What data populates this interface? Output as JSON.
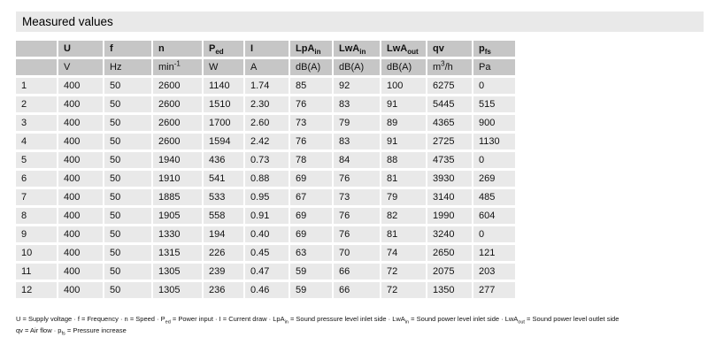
{
  "title": "Measured values",
  "colors": {
    "title_bar_bg": "#e9e9e9",
    "header_cell_bg": "#c6c6c6",
    "data_cell_bg": "#e9e9e9",
    "text": "#111111",
    "page_bg": "#ffffff"
  },
  "table": {
    "header": [
      {
        "base": "",
        "sub": ""
      },
      {
        "base": "U",
        "sub": ""
      },
      {
        "base": "f",
        "sub": ""
      },
      {
        "base": "n",
        "sub": ""
      },
      {
        "base": "P",
        "sub": "ed"
      },
      {
        "base": "I",
        "sub": ""
      },
      {
        "base": "LpA",
        "sub": "in"
      },
      {
        "base": "LwA",
        "sub": "in"
      },
      {
        "base": "LwA",
        "sub": "out"
      },
      {
        "base": "qv",
        "sub": ""
      },
      {
        "base": "p",
        "sub": "fs"
      }
    ],
    "units": [
      {
        "base": "",
        "sup": "",
        "after": ""
      },
      {
        "base": "V",
        "sup": "",
        "after": ""
      },
      {
        "base": "Hz",
        "sup": "",
        "after": ""
      },
      {
        "base": "min",
        "sup": "-1",
        "after": ""
      },
      {
        "base": "W",
        "sup": "",
        "after": ""
      },
      {
        "base": "A",
        "sup": "",
        "after": ""
      },
      {
        "base": "dB(A)",
        "sup": "",
        "after": ""
      },
      {
        "base": "dB(A)",
        "sup": "",
        "after": ""
      },
      {
        "base": "dB(A)",
        "sup": "",
        "after": ""
      },
      {
        "base": "m",
        "sup": "3",
        "after": "/h"
      },
      {
        "base": "Pa",
        "sup": "",
        "after": ""
      }
    ],
    "rows": [
      [
        "1",
        "400",
        "50",
        "2600",
        "1140",
        "1.74",
        "85",
        "92",
        "100",
        "6275",
        "0"
      ],
      [
        "2",
        "400",
        "50",
        "2600",
        "1510",
        "2.30",
        "76",
        "83",
        "91",
        "5445",
        "515"
      ],
      [
        "3",
        "400",
        "50",
        "2600",
        "1700",
        "2.60",
        "73",
        "79",
        "89",
        "4365",
        "900"
      ],
      [
        "4",
        "400",
        "50",
        "2600",
        "1594",
        "2.42",
        "76",
        "83",
        "91",
        "2725",
        "1130"
      ],
      [
        "5",
        "400",
        "50",
        "1940",
        "436",
        "0.73",
        "78",
        "84",
        "88",
        "4735",
        "0"
      ],
      [
        "6",
        "400",
        "50",
        "1910",
        "541",
        "0.88",
        "69",
        "76",
        "81",
        "3930",
        "269"
      ],
      [
        "7",
        "400",
        "50",
        "1885",
        "533",
        "0.95",
        "67",
        "73",
        "79",
        "3140",
        "485"
      ],
      [
        "8",
        "400",
        "50",
        "1905",
        "558",
        "0.91",
        "69",
        "76",
        "82",
        "1990",
        "604"
      ],
      [
        "9",
        "400",
        "50",
        "1330",
        "194",
        "0.40",
        "69",
        "76",
        "81",
        "3240",
        "0"
      ],
      [
        "10",
        "400",
        "50",
        "1315",
        "226",
        "0.45",
        "63",
        "70",
        "74",
        "2650",
        "121"
      ],
      [
        "11",
        "400",
        "50",
        "1305",
        "239",
        "0.47",
        "59",
        "66",
        "72",
        "2075",
        "203"
      ],
      [
        "12",
        "400",
        "50",
        "1305",
        "236",
        "0.46",
        "59",
        "66",
        "72",
        "1350",
        "277"
      ]
    ]
  },
  "footnotes": [
    [
      {
        "t": "U = Supply voltage · f = Frequency · n = Speed · P"
      },
      {
        "s": "ed"
      },
      {
        "t": " = Power input · I = Current draw · LpA"
      },
      {
        "s": "in"
      },
      {
        "t": " = Sound pressure level inlet side · LwA"
      },
      {
        "s": "in"
      },
      {
        "t": " = Sound power level inlet side · LwA"
      },
      {
        "s": "out"
      },
      {
        "t": " = Sound power level outlet side"
      }
    ],
    [
      {
        "t": "qv = Air flow · p"
      },
      {
        "s": "fs"
      },
      {
        "t": " = Pressure increase"
      }
    ]
  ]
}
